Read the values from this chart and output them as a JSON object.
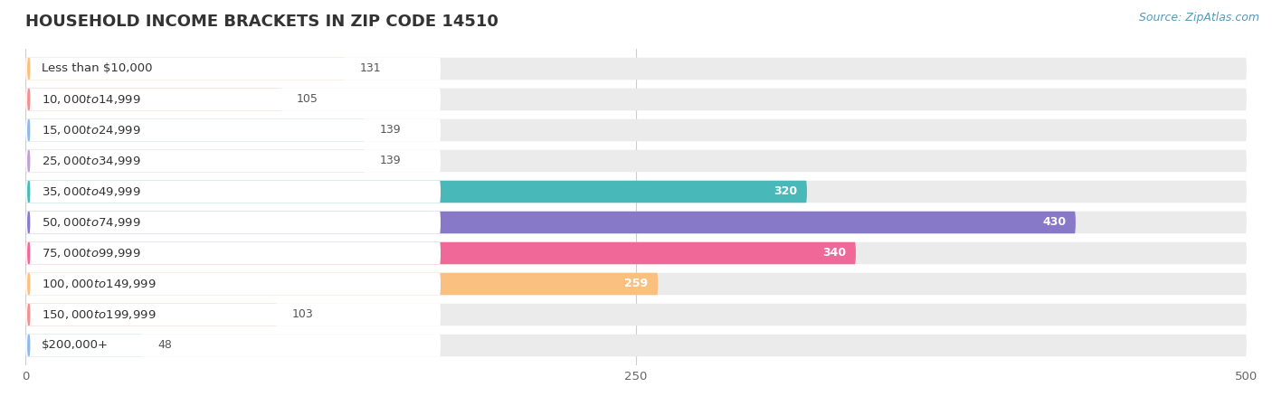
{
  "title": "Household Income Brackets in Zip Code 14510",
  "title_display": "HOUSEHOLD INCOME BRACKETS IN ZIP CODE 14510",
  "source": "Source: ZipAtlas.com",
  "categories": [
    "Less than $10,000",
    "$10,000 to $14,999",
    "$15,000 to $24,999",
    "$25,000 to $34,999",
    "$35,000 to $49,999",
    "$50,000 to $74,999",
    "$75,000 to $99,999",
    "$100,000 to $149,999",
    "$150,000 to $199,999",
    "$200,000+"
  ],
  "values": [
    131,
    105,
    139,
    139,
    320,
    430,
    340,
    259,
    103,
    48
  ],
  "bar_colors": [
    "#F9C080",
    "#F09090",
    "#90B8E8",
    "#C0A0D0",
    "#48B8B8",
    "#8878C8",
    "#F06898",
    "#F9C080",
    "#F09090",
    "#90B8E8"
  ],
  "background_color": "#ffffff",
  "bar_bg_color": "#ebebeb",
  "bar_bg_outer_color": "#f0f0f0",
  "xlim_data": [
    0,
    500
  ],
  "x_label_offset": 170,
  "xticks": [
    0,
    250,
    500
  ],
  "title_fontsize": 13,
  "label_fontsize": 9.5,
  "value_fontsize": 9,
  "source_fontsize": 9
}
